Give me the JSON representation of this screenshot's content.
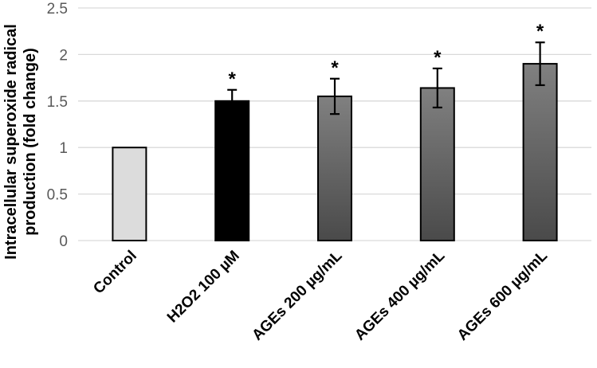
{
  "chart_data": {
    "type": "bar",
    "title": "",
    "xlabel": "",
    "ylabel": "Intracellular superoxide radical production (fold change)",
    "ylabel_lines": [
      "Intracellular superoxide radical",
      "production (fold change)"
    ],
    "ylim": [
      0,
      2.5
    ],
    "yticks": [
      0,
      0.5,
      1,
      1.5,
      2,
      2.5
    ],
    "ytick_labels": [
      "0",
      "0.5",
      "1",
      "1.5",
      "2",
      "2.5"
    ],
    "grid": true,
    "categories": [
      "Control",
      "H2O2 100 µM",
      "AGEs 200 µg/mL",
      "AGEs 400 µg/mL",
      "AGEs 600 µg/mL"
    ],
    "values": [
      1.0,
      1.5,
      1.55,
      1.64,
      1.9
    ],
    "errors": [
      0,
      0.12,
      0.19,
      0.21,
      0.23
    ],
    "significance": [
      "",
      "*",
      "*",
      "*",
      "*"
    ],
    "fills": [
      "solid-light",
      "solid-dark",
      "gradient",
      "gradient",
      "gradient"
    ]
  },
  "colors": {
    "control": "#dcdcdc",
    "h2o2": "#000000",
    "ages_top": "#808080",
    "ages_bottom": "#4a4a4a",
    "grid": "#d9d9d9",
    "tick_text": "#595959"
  }
}
